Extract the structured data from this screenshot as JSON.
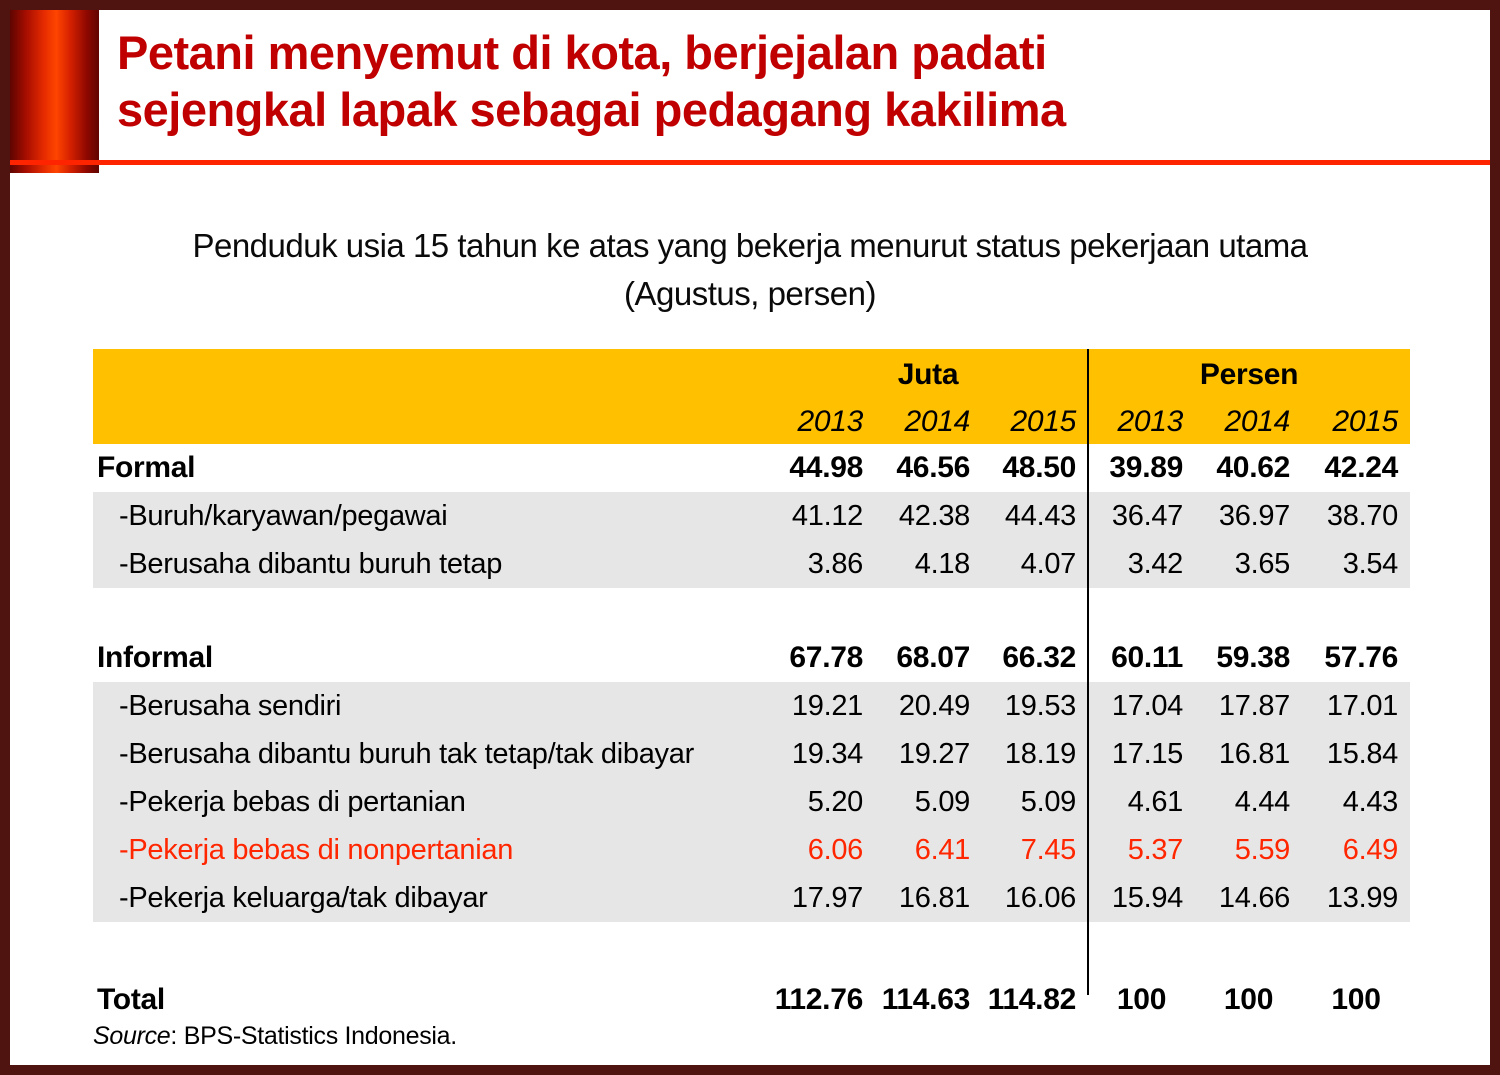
{
  "title": {
    "line1": "Petani menyemut di kota, berjejalan padati",
    "line2": "sejengkal lapak sebagai pedagang kakilima"
  },
  "subtitle": {
    "line1": "Penduduk usia 15 tahun ke atas yang bekerja menurut status pekerjaan utama",
    "line2": "(Agustus, persen)"
  },
  "table": {
    "group_headers": {
      "juta": "Juta",
      "persen": "Persen"
    },
    "years": [
      "2013",
      "2014",
      "2015",
      "2013",
      "2014",
      "2015"
    ],
    "rows": [
      {
        "label": "Formal",
        "values": [
          "44.98",
          "46.56",
          "48.50",
          "39.89",
          "40.62",
          "42.24"
        ]
      },
      {
        "label": "-Buruh/karyawan/pegawai",
        "values": [
          "41.12",
          "42.38",
          "44.43",
          "36.47",
          "36.97",
          "38.70"
        ]
      },
      {
        "label": "-Berusaha dibantu buruh tetap",
        "values": [
          "3.86",
          "4.18",
          "4.07",
          "3.42",
          "3.65",
          "3.54"
        ]
      },
      {
        "label": "Informal",
        "values": [
          "67.78",
          "68.07",
          "66.32",
          "60.11",
          "59.38",
          "57.76"
        ]
      },
      {
        "label": "-Berusaha sendiri",
        "values": [
          "19.21",
          "20.49",
          "19.53",
          "17.04",
          "17.87",
          "17.01"
        ]
      },
      {
        "label": "-Berusaha dibantu buruh tak tetap/tak dibayar",
        "values": [
          "19.34",
          "19.27",
          "18.19",
          "17.15",
          "16.81",
          "15.84"
        ]
      },
      {
        "label": "-Pekerja bebas di pertanian",
        "values": [
          "5.20",
          "5.09",
          "5.09",
          "4.61",
          "4.44",
          "4.43"
        ]
      },
      {
        "label": "-Pekerja bebas di nonpertanian",
        "values": [
          "6.06",
          "6.41",
          "7.45",
          "5.37",
          "5.59",
          "6.49"
        ]
      },
      {
        "label": "-Pekerja keluarga/tak dibayar",
        "values": [
          "17.97",
          "16.81",
          "16.06",
          "15.94",
          "14.66",
          "13.99"
        ]
      },
      {
        "label": "Total",
        "values": [
          "112.76",
          "114.63",
          "114.82",
          "100",
          "100",
          "100"
        ]
      }
    ]
  },
  "source": {
    "label": "Source",
    "text": ": BPS-Statistics Indonesia."
  },
  "colors": {
    "title_red": "#C00000",
    "accent_line_red": "#FF2400",
    "header_yellow": "#FFC000",
    "row_gray": "#E7E6E6",
    "highlight_red": "#FF2600",
    "frame_maroon": "#4F1410"
  }
}
